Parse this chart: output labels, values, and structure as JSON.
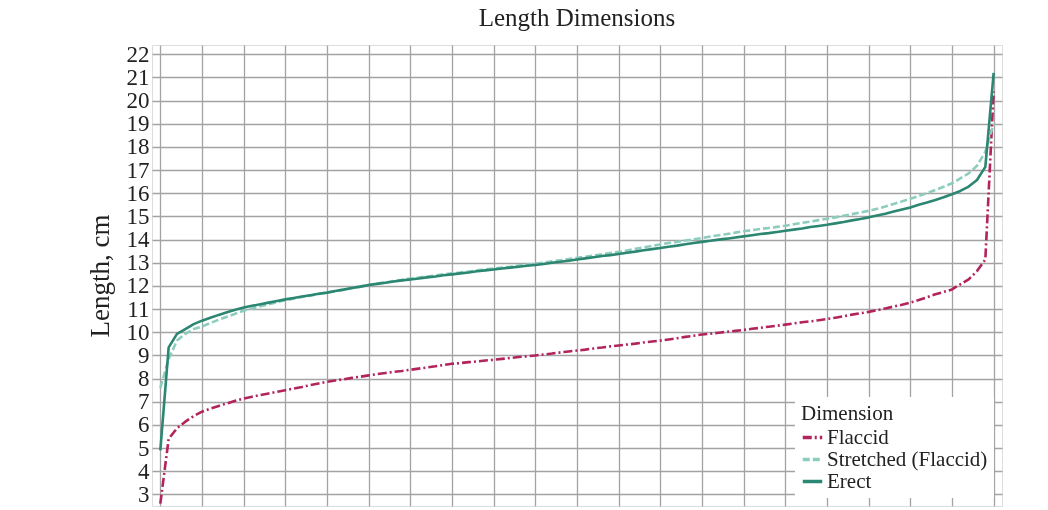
{
  "chart_data": {
    "type": "line",
    "title": "Length Dimensions",
    "ylabel": "Length, cm",
    "legend_title": "Dimension",
    "categories": [
      null,
      null,
      null,
      null,
      null,
      null,
      null,
      null,
      null,
      null,
      null,
      null,
      null,
      null,
      null,
      null,
      null,
      null,
      null,
      null,
      null,
      null,
      null,
      null,
      null,
      null,
      null,
      null,
      null,
      null,
      null,
      null,
      null,
      null,
      null,
      null,
      null,
      null,
      null,
      null,
      null,
      null,
      null,
      null,
      null,
      null,
      null,
      null,
      null,
      null,
      null,
      null,
      null,
      null,
      null,
      null,
      null,
      null,
      null,
      null,
      null,
      null,
      null,
      null,
      null,
      null,
      null,
      null,
      null,
      null,
      null,
      null,
      null,
      null,
      null,
      null,
      null,
      null,
      null,
      null,
      null,
      null,
      null,
      null,
      null,
      null,
      null,
      null,
      null,
      null,
      null,
      null,
      null,
      null,
      null,
      null,
      null,
      null,
      null,
      null,
      null
    ],
    "series": [
      {
        "name": "Flaccid",
        "color": "#b2245c",
        "line_style": "dashdot",
        "values": [
          2.6,
          5.4,
          5.86,
          6.14,
          6.38,
          6.57,
          6.7,
          6.82,
          6.93,
          7.04,
          7.14,
          7.22,
          7.29,
          7.36,
          7.43,
          7.5,
          7.57,
          7.64,
          7.72,
          7.79,
          7.86,
          7.92,
          7.97,
          8.03,
          8.08,
          8.14,
          8.19,
          8.24,
          8.29,
          8.33,
          8.38,
          8.43,
          8.48,
          8.53,
          8.59,
          8.64,
          8.67,
          8.71,
          8.74,
          8.78,
          8.81,
          8.85,
          8.89,
          8.93,
          8.96,
          9.0,
          9.04,
          9.08,
          9.13,
          9.17,
          9.21,
          9.25,
          9.3,
          9.34,
          9.39,
          9.43,
          9.47,
          9.51,
          9.56,
          9.6,
          9.64,
          9.69,
          9.74,
          9.8,
          9.85,
          9.9,
          9.94,
          9.98,
          10.02,
          10.06,
          10.1,
          10.15,
          10.19,
          10.24,
          10.28,
          10.33,
          10.38,
          10.43,
          10.47,
          10.52,
          10.57,
          10.63,
          10.69,
          10.76,
          10.82,
          10.88,
          10.95,
          11.03,
          11.11,
          11.19,
          11.28,
          11.39,
          11.51,
          11.64,
          11.74,
          11.85,
          12.07,
          12.28,
          12.64,
          13.14,
          20.4
        ]
      },
      {
        "name": "Stretched (Flaccid)",
        "color": "#8ccdbe",
        "line_style": "dashed",
        "values": [
          7.6,
          8.85,
          9.64,
          9.93,
          10.14,
          10.25,
          10.4,
          10.54,
          10.67,
          10.8,
          10.93,
          11.03,
          11.12,
          11.21,
          11.3,
          11.38,
          11.45,
          11.52,
          11.58,
          11.65,
          11.71,
          11.78,
          11.84,
          11.91,
          11.97,
          12.04,
          12.1,
          12.15,
          12.21,
          12.26,
          12.32,
          12.36,
          12.41,
          12.45,
          12.5,
          12.54,
          12.58,
          12.62,
          12.67,
          12.71,
          12.75,
          12.79,
          12.83,
          12.88,
          12.92,
          12.96,
          13.01,
          13.06,
          13.11,
          13.16,
          13.21,
          13.26,
          13.31,
          13.37,
          13.42,
          13.47,
          13.53,
          13.6,
          13.66,
          13.73,
          13.79,
          13.85,
          13.9,
          13.96,
          14.01,
          14.07,
          14.13,
          14.19,
          14.24,
          14.3,
          14.36,
          14.41,
          14.46,
          14.5,
          14.55,
          14.6,
          14.66,
          14.72,
          14.78,
          14.84,
          14.9,
          14.96,
          15.03,
          15.1,
          15.17,
          15.24,
          15.33,
          15.43,
          15.54,
          15.65,
          15.76,
          15.88,
          16.01,
          16.14,
          16.28,
          16.43,
          16.64,
          16.86,
          17.19,
          17.79,
          19.0
        ]
      },
      {
        "name": "Erect",
        "color": "#2b8672",
        "line_style": "solid",
        "values": [
          4.9,
          9.35,
          9.93,
          10.14,
          10.35,
          10.5,
          10.63,
          10.75,
          10.86,
          10.97,
          11.07,
          11.14,
          11.21,
          11.28,
          11.35,
          11.42,
          11.48,
          11.54,
          11.6,
          11.66,
          11.71,
          11.78,
          11.84,
          11.91,
          11.97,
          12.04,
          12.09,
          12.14,
          12.19,
          12.24,
          12.28,
          12.32,
          12.37,
          12.41,
          12.46,
          12.5,
          12.54,
          12.58,
          12.63,
          12.67,
          12.71,
          12.75,
          12.79,
          12.83,
          12.87,
          12.9,
          12.95,
          13.0,
          13.04,
          13.09,
          13.14,
          13.19,
          13.24,
          13.29,
          13.33,
          13.38,
          13.43,
          13.48,
          13.54,
          13.59,
          13.64,
          13.69,
          13.74,
          13.8,
          13.85,
          13.9,
          13.95,
          14.0,
          14.04,
          14.09,
          14.14,
          14.19,
          14.24,
          14.28,
          14.33,
          14.38,
          14.43,
          14.48,
          14.54,
          14.59,
          14.64,
          14.7,
          14.76,
          14.83,
          14.89,
          14.96,
          15.04,
          15.12,
          15.21,
          15.3,
          15.39,
          15.5,
          15.6,
          15.71,
          15.83,
          15.96,
          16.1,
          16.29,
          16.57,
          17.14,
          21.2
        ]
      }
    ],
    "ylim": [
      2.5,
      22.4
    ],
    "yticks": [
      3,
      4,
      5,
      6,
      7,
      8,
      9,
      10,
      11,
      12,
      13,
      14,
      15,
      16,
      17,
      18,
      19,
      20,
      21,
      22
    ],
    "grid": true,
    "legend": "bottom right",
    "tick_labels": "y"
  }
}
